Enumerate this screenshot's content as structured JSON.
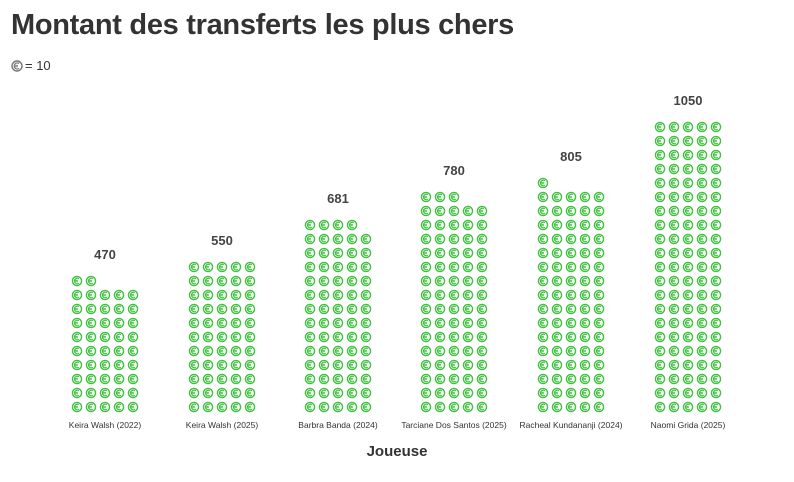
{
  "title": "Montant des transferts les plus chers",
  "legend": {
    "icon": "euro-coin-icon",
    "text": "= 10"
  },
  "colors": {
    "icon": "#3cc23c",
    "text": "#333333"
  },
  "chart_data": {
    "type": "pictogram-bar",
    "title": "Montant des transferts les plus chers",
    "xlabel": "Joueuse",
    "ylabel": "",
    "unit_per_icon": 10,
    "categories": [
      "Keira Walsh (2022)",
      "Keira Walsh (2025)",
      "Barbra Banda (2024)",
      "Tarciane Dos Santos (2025)",
      "Racheal Kundananji (2024)",
      "Naomi Grida (2025)"
    ],
    "values": [
      470,
      550,
      681,
      780,
      805,
      1050
    ],
    "icons_per_row": 5
  }
}
